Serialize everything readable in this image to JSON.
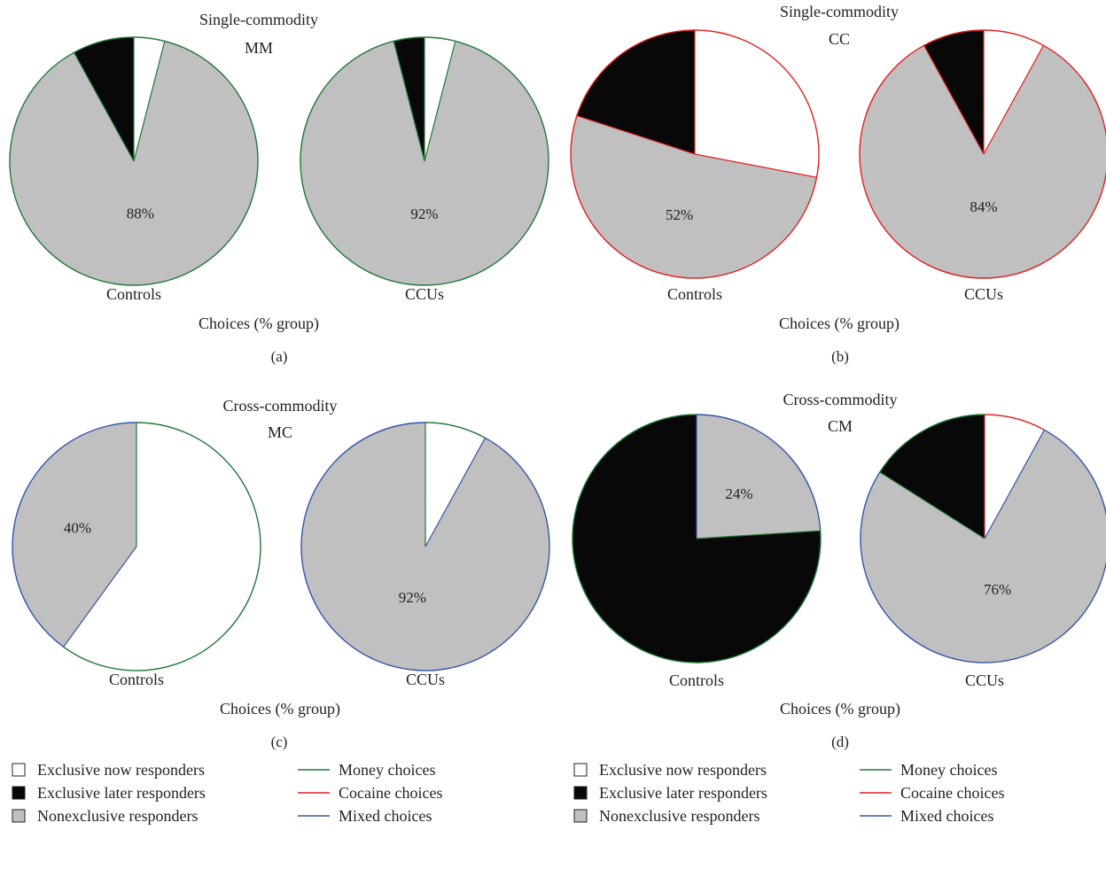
{
  "colors": {
    "now": "#ffffff",
    "later": "#080808",
    "nonexclusive": "#c0c0c0",
    "money": "#1f7a35",
    "cocaine": "#e02020",
    "mixed": "#3355aa",
    "outline": "#222222"
  },
  "chart_data": [
    {
      "type": "pie",
      "panel_label": "(a)",
      "title_line1": "Single-commodity",
      "title_line2": "MM",
      "xlabel": "Choices (% group)",
      "groups": [
        {
          "name": "Controls",
          "pct_label": "88%",
          "slices": [
            {
              "category": "Exclusive now responders",
              "value": 4,
              "edge": "money"
            },
            {
              "category": "Nonexclusive responders",
              "value": 88,
              "edge": "money"
            },
            {
              "category": "Exclusive later responders",
              "value": 8,
              "edge": "money"
            }
          ]
        },
        {
          "name": "CCUs",
          "pct_label": "92%",
          "slices": [
            {
              "category": "Exclusive now responders",
              "value": 4,
              "edge": "money"
            },
            {
              "category": "Nonexclusive responders",
              "value": 92,
              "edge": "money"
            },
            {
              "category": "Exclusive later responders",
              "value": 4,
              "edge": "money"
            }
          ]
        }
      ]
    },
    {
      "type": "pie",
      "panel_label": "(b)",
      "title_line1": "Single-commodity",
      "title_line2": "CC",
      "xlabel": "Choices (% group)",
      "groups": [
        {
          "name": "Controls",
          "pct_label": "52%",
          "slices": [
            {
              "category": "Exclusive now responders",
              "value": 28,
              "edge": "cocaine"
            },
            {
              "category": "Nonexclusive responders",
              "value": 52,
              "edge": "cocaine"
            },
            {
              "category": "Exclusive later responders",
              "value": 20,
              "edge": "cocaine"
            }
          ]
        },
        {
          "name": "CCUs",
          "pct_label": "84%",
          "slices": [
            {
              "category": "Exclusive now responders",
              "value": 8,
              "edge": "cocaine"
            },
            {
              "category": "Nonexclusive responders",
              "value": 84,
              "edge": "cocaine"
            },
            {
              "category": "Exclusive later responders",
              "value": 8,
              "edge": "cocaine"
            }
          ]
        }
      ]
    },
    {
      "type": "pie",
      "panel_label": "(c)",
      "title_line1": "Cross-commodity",
      "title_line2": "MC",
      "xlabel": "Choices (% group)",
      "groups": [
        {
          "name": "Controls",
          "pct_label": "40%",
          "slices": [
            {
              "category": "Exclusive now responders",
              "value": 60,
              "edge": "money"
            },
            {
              "category": "Nonexclusive responders",
              "value": 40,
              "edge": "mixed"
            }
          ]
        },
        {
          "name": "CCUs",
          "pct_label": "92%",
          "slices": [
            {
              "category": "Exclusive now responders",
              "value": 8,
              "edge": "money"
            },
            {
              "category": "Nonexclusive responders",
              "value": 92,
              "edge": "mixed"
            }
          ]
        }
      ]
    },
    {
      "type": "pie",
      "panel_label": "(d)",
      "title_line1": "Cross-commodity",
      "title_line2": "CM",
      "xlabel": "Choices (% group)",
      "groups": [
        {
          "name": "Controls",
          "pct_label": "24%",
          "slices": [
            {
              "category": "Nonexclusive responders",
              "value": 24,
              "edge": "mixed"
            },
            {
              "category": "Exclusive later responders",
              "value": 76,
              "edge": "money"
            }
          ]
        },
        {
          "name": "CCUs",
          "pct_label": "76%",
          "slices": [
            {
              "category": "Exclusive now responders",
              "value": 8,
              "edge": "cocaine"
            },
            {
              "category": "Nonexclusive responders",
              "value": 76,
              "edge": "mixed"
            },
            {
              "category": "Exclusive later responders",
              "value": 16,
              "edge": "money"
            }
          ]
        }
      ]
    }
  ],
  "legend": {
    "fills": [
      {
        "label": "Exclusive now responders",
        "key": "now"
      },
      {
        "label": "Exclusive later responders",
        "key": "later"
      },
      {
        "label": "Nonexclusive responders",
        "key": "nonexclusive"
      }
    ],
    "lines": [
      {
        "label": "Money choices",
        "key": "money"
      },
      {
        "label": "Cocaine choices",
        "key": "cocaine"
      },
      {
        "label": "Mixed choices",
        "key": "mixed"
      }
    ]
  }
}
